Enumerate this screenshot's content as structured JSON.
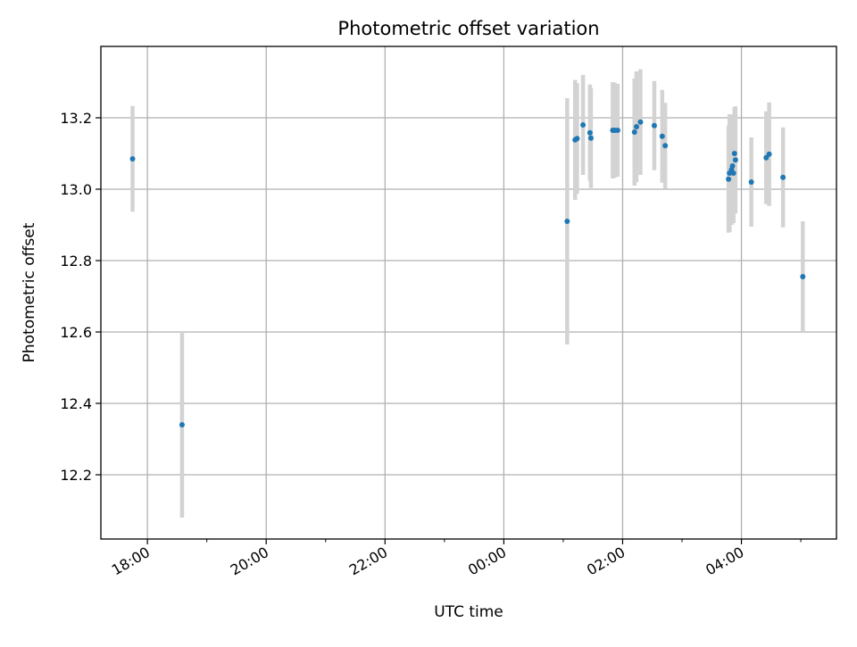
{
  "chart_data": {
    "type": "scatter",
    "title": "Photometric offset variation",
    "xlabel": "UTC time",
    "ylabel": "Photometric offset",
    "x_ticks": [
      "17:00",
      "18:00",
      "19:00",
      "20:00",
      "21:00",
      "22:00",
      "23:00",
      "00:00",
      "01:00",
      "02:00",
      "03:00",
      "04:00",
      "05:00"
    ],
    "x_tick_labels": [
      "18:00",
      "20:00",
      "22:00",
      "00:00",
      "02:00",
      "04:00"
    ],
    "x_tick_label_times": [
      "18:00",
      "20:00",
      "22:00",
      "00:00",
      "02:00",
      "04:00"
    ],
    "y_ticks": [
      12.2,
      12.4,
      12.6,
      12.8,
      13.0,
      13.2
    ],
    "xlim": [
      "17:13",
      "05:36"
    ],
    "ylim": [
      12.02,
      13.4
    ],
    "grid": true,
    "colors": {
      "marker": "#1f77b4",
      "errorbar": "#d3d3d3",
      "grid": "#b0b0b0"
    },
    "points": [
      {
        "t": "17:45",
        "y": 13.085,
        "err": 0.148
      },
      {
        "t": "18:35",
        "y": 12.34,
        "err": 0.26
      },
      {
        "t": "01:04",
        "y": 12.91,
        "err": 0.345
      },
      {
        "t": "01:12",
        "y": 13.138,
        "err": 0.168
      },
      {
        "t": "01:14",
        "y": 13.142,
        "err": 0.155
      },
      {
        "t": "01:20",
        "y": 13.18,
        "err": 0.14
      },
      {
        "t": "01:27",
        "y": 13.158,
        "err": 0.135
      },
      {
        "t": "01:28",
        "y": 13.143,
        "err": 0.14
      },
      {
        "t": "01:50",
        "y": 13.165,
        "err": 0.135
      },
      {
        "t": "01:52",
        "y": 13.165,
        "err": 0.133
      },
      {
        "t": "01:55",
        "y": 13.165,
        "err": 0.13
      },
      {
        "t": "02:12",
        "y": 13.16,
        "err": 0.15
      },
      {
        "t": "02:14",
        "y": 13.175,
        "err": 0.155
      },
      {
        "t": "02:18",
        "y": 13.188,
        "err": 0.148
      },
      {
        "t": "02:32",
        "y": 13.178,
        "err": 0.125
      },
      {
        "t": "02:40",
        "y": 13.148,
        "err": 0.13
      },
      {
        "t": "02:43",
        "y": 13.122,
        "err": 0.12
      },
      {
        "t": "03:47",
        "y": 13.028,
        "err": 0.15
      },
      {
        "t": "03:48",
        "y": 13.045,
        "err": 0.165
      },
      {
        "t": "03:50",
        "y": 13.055,
        "err": 0.155
      },
      {
        "t": "03:51",
        "y": 13.065,
        "err": 0.14
      },
      {
        "t": "03:52",
        "y": 13.045,
        "err": 0.14
      },
      {
        "t": "03:53",
        "y": 13.1,
        "err": 0.13
      },
      {
        "t": "03:54",
        "y": 13.082,
        "err": 0.15
      },
      {
        "t": "04:10",
        "y": 13.02,
        "err": 0.125
      },
      {
        "t": "04:25",
        "y": 13.088,
        "err": 0.13
      },
      {
        "t": "04:28",
        "y": 13.098,
        "err": 0.145
      },
      {
        "t": "04:42",
        "y": 13.033,
        "err": 0.14
      },
      {
        "t": "05:02",
        "y": 12.755,
        "err": 0.155
      }
    ]
  }
}
